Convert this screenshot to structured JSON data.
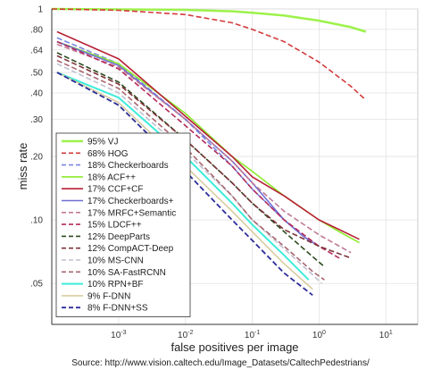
{
  "chart_data": {
    "type": "line",
    "title": "",
    "xlabel": "false positives per image",
    "ylabel": "miss rate",
    "xscale": "log",
    "yscale": "log",
    "xlim": [
      0.0001,
      30
    ],
    "ylim": [
      0.032,
      1
    ],
    "x_ticks": [
      {
        "v": 0.001,
        "label": "10-3",
        "base": "10",
        "exp": "-3"
      },
      {
        "v": 0.01,
        "label": "10-2",
        "base": "10",
        "exp": "-2"
      },
      {
        "v": 0.1,
        "label": "10-1",
        "base": "10",
        "exp": "-1"
      },
      {
        "v": 1,
        "label": "100",
        "base": "10",
        "exp": "0"
      },
      {
        "v": 10,
        "label": "101",
        "base": "10",
        "exp": "1"
      }
    ],
    "y_ticks": [
      {
        "v": 0.05,
        "label": ".05"
      },
      {
        "v": 0.1,
        "label": ".10"
      },
      {
        "v": 0.2,
        "label": ".20"
      },
      {
        "v": 0.3,
        "label": ".30"
      },
      {
        "v": 0.4,
        "label": ".40"
      },
      {
        "v": 0.5,
        "label": ".50"
      },
      {
        "v": 0.64,
        "label": ".64"
      },
      {
        "v": 0.8,
        "label": ".80"
      },
      {
        "v": 1,
        "label": "1"
      }
    ],
    "grid": true,
    "legend_position": "bottom-left",
    "series": [
      {
        "name": "95% VJ",
        "color": "#9cf24a",
        "dash": "solid",
        "width": 2.5,
        "x": [
          0.0001,
          0.001,
          0.01,
          0.05,
          0.1,
          0.3,
          1,
          3,
          5
        ],
        "y": [
          1,
          0.995,
          0.99,
          0.975,
          0.96,
          0.93,
          0.88,
          0.82,
          0.78
        ]
      },
      {
        "name": "68% HOG",
        "color": "#d33b3b",
        "dash": "dash",
        "width": 1.6,
        "x": [
          0.0001,
          0.001,
          0.01,
          0.05,
          0.1,
          0.3,
          1,
          3,
          5
        ],
        "y": [
          1,
          0.985,
          0.94,
          0.86,
          0.8,
          0.7,
          0.56,
          0.43,
          0.37
        ]
      },
      {
        "name": "18% Checkerboards",
        "color": "#7a86e0",
        "dash": "dash",
        "width": 1.6,
        "x": [
          0.00012,
          0.001,
          0.01,
          0.05,
          0.1,
          0.3,
          0.6,
          1
        ],
        "y": [
          0.73,
          0.55,
          0.3,
          0.18,
          0.14,
          0.1,
          0.083,
          0.075
        ]
      },
      {
        "name": "18% ACF++",
        "color": "#8cea2c",
        "dash": "solid",
        "width": 1.6,
        "x": [
          0.00012,
          0.001,
          0.01,
          0.05,
          0.1,
          0.3,
          1,
          2,
          4
        ],
        "y": [
          0.7,
          0.55,
          0.32,
          0.2,
          0.17,
          0.13,
          0.1,
          0.088,
          0.078
        ]
      },
      {
        "name": "17% CCF+CF",
        "color": "#b72035",
        "dash": "solid",
        "width": 1.6,
        "x": [
          0.00012,
          0.001,
          0.01,
          0.05,
          0.1,
          0.3,
          1,
          2,
          4
        ],
        "y": [
          0.78,
          0.58,
          0.31,
          0.2,
          0.16,
          0.13,
          0.1,
          0.09,
          0.081
        ]
      },
      {
        "name": "17% Checkerboards+",
        "color": "#6f6fd2",
        "dash": "solid",
        "width": 1.6,
        "x": [
          0.00012,
          0.001,
          0.01,
          0.05,
          0.1,
          0.3,
          0.6,
          1
        ],
        "y": [
          0.7,
          0.54,
          0.3,
          0.19,
          0.15,
          0.1,
          0.083,
          0.075
        ]
      },
      {
        "name": "17% MRFC+Semantic",
        "color": "#c07a96",
        "dash": "dash",
        "width": 1.6,
        "x": [
          0.00012,
          0.001,
          0.01,
          0.05,
          0.1,
          0.3,
          1,
          3
        ],
        "y": [
          0.68,
          0.53,
          0.3,
          0.19,
          0.15,
          0.11,
          0.085,
          0.07
        ]
      },
      {
        "name": "15% LDCF++",
        "color": "#b32a5a",
        "dash": "dash",
        "width": 1.6,
        "x": [
          0.00012,
          0.001,
          0.01,
          0.05,
          0.1,
          0.3,
          1,
          2
        ],
        "y": [
          0.7,
          0.52,
          0.28,
          0.18,
          0.14,
          0.1,
          0.075,
          0.066
        ]
      },
      {
        "name": "12% DeepParts",
        "color": "#2c4a1f",
        "dash": "dash",
        "width": 1.6,
        "x": [
          0.00012,
          0.001,
          0.01,
          0.05,
          0.1,
          0.3,
          0.8,
          1.2
        ],
        "y": [
          0.62,
          0.45,
          0.24,
          0.15,
          0.12,
          0.088,
          0.067,
          0.06
        ]
      },
      {
        "name": "12% CompACT-Deep",
        "color": "#7e3238",
        "dash": "dash",
        "width": 1.6,
        "x": [
          0.00012,
          0.001,
          0.01,
          0.05,
          0.1,
          0.3,
          1,
          3
        ],
        "y": [
          0.6,
          0.44,
          0.24,
          0.15,
          0.12,
          0.09,
          0.075,
          0.066
        ]
      },
      {
        "name": "10% MS-CNN",
        "color": "#c0c0d0",
        "dash": "dash",
        "width": 1.6,
        "x": [
          0.00012,
          0.001,
          0.01,
          0.05,
          0.1,
          0.3,
          0.8,
          1.1
        ],
        "y": [
          0.55,
          0.4,
          0.21,
          0.13,
          0.1,
          0.073,
          0.055,
          0.05
        ]
      },
      {
        "name": "10% SA-FastRCNN",
        "color": "#a8656f",
        "dash": "dash",
        "width": 1.6,
        "x": [
          0.00012,
          0.001,
          0.01,
          0.05,
          0.1,
          0.3,
          0.8,
          1.2
        ],
        "y": [
          0.57,
          0.42,
          0.22,
          0.13,
          0.1,
          0.075,
          0.057,
          0.052
        ]
      },
      {
        "name": "10% RPN+BF",
        "color": "#3ceddb",
        "dash": "solid",
        "width": 2,
        "x": [
          0.00012,
          0.001,
          0.01,
          0.05,
          0.1,
          0.3,
          0.7
        ],
        "y": [
          0.5,
          0.38,
          0.2,
          0.12,
          0.095,
          0.068,
          0.052
        ]
      },
      {
        "name": "9% F-DNN",
        "color": "#d7cca0",
        "dash": "solid",
        "width": 1.6,
        "x": [
          0.00012,
          0.001,
          0.01,
          0.05,
          0.1,
          0.3,
          0.8
        ],
        "y": [
          0.5,
          0.36,
          0.18,
          0.11,
          0.088,
          0.062,
          0.047
        ]
      },
      {
        "name": "8% F-DNN+SS",
        "color": "#2d2d9a",
        "dash": "dash",
        "width": 1.8,
        "x": [
          0.00012,
          0.001,
          0.01,
          0.05,
          0.1,
          0.3,
          0.8
        ],
        "y": [
          0.5,
          0.35,
          0.17,
          0.1,
          0.08,
          0.056,
          0.044
        ]
      }
    ]
  },
  "source_note": "Source: http://www.vision.caltech.edu/Image_Datasets/CaltechPedestrians/"
}
